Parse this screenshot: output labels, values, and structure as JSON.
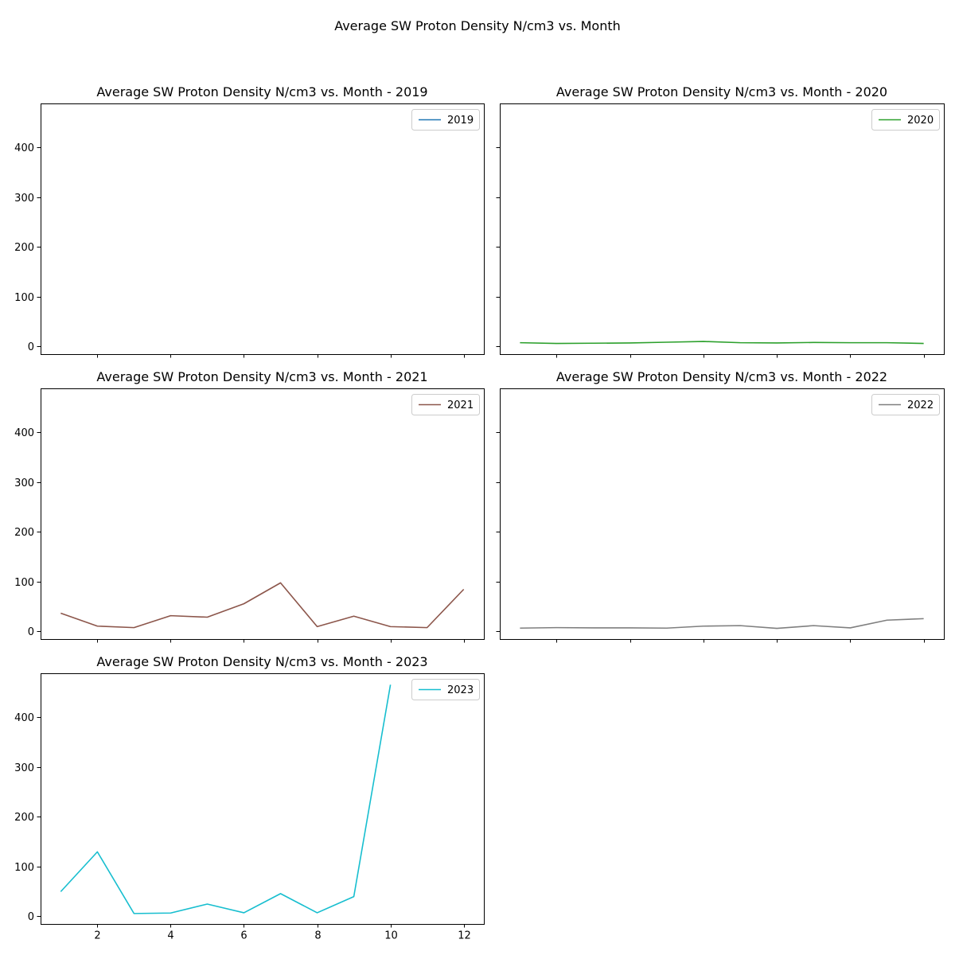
{
  "figure": {
    "suptitle": "Average SW Proton Density N/cm3 vs. Month"
  },
  "chart_data": [
    {
      "type": "line",
      "title": "Average SW Proton Density N/cm3 vs. Month - 2019",
      "xlabel": "",
      "ylabel": "",
      "xlim": [
        0.45,
        12.55
      ],
      "ylim": [
        -16,
        488
      ],
      "xticks": [
        2,
        4,
        6,
        8,
        10,
        12
      ],
      "yticks": [
        0,
        100,
        200,
        300,
        400
      ],
      "show_x_ticklabels": false,
      "show_y_ticklabels": true,
      "legend": "upper-right",
      "grid": false,
      "series": [
        {
          "name": "2019",
          "color": "#1f77b4",
          "x": [],
          "y": []
        }
      ]
    },
    {
      "type": "line",
      "title": "Average SW Proton Density N/cm3 vs. Month - 2020",
      "xlabel": "",
      "ylabel": "",
      "xlim": [
        0.45,
        12.55
      ],
      "ylim": [
        -16,
        488
      ],
      "xticks": [
        2,
        4,
        6,
        8,
        10,
        12
      ],
      "yticks": [
        0,
        100,
        200,
        300,
        400
      ],
      "show_x_ticklabels": false,
      "show_y_ticklabels": false,
      "legend": "upper-right",
      "grid": false,
      "series": [
        {
          "name": "2020",
          "color": "#2ca02c",
          "x": [
            1,
            2,
            3,
            4,
            5,
            6,
            7,
            8,
            9,
            10,
            11,
            12
          ],
          "y": [
            7,
            5.5,
            6,
            6.5,
            8,
            9.5,
            7,
            6.5,
            7.5,
            7,
            7,
            5.5
          ]
        }
      ]
    },
    {
      "type": "line",
      "title": "Average SW Proton Density N/cm3 vs. Month - 2021",
      "xlabel": "",
      "ylabel": "",
      "xlim": [
        0.45,
        12.55
      ],
      "ylim": [
        -16,
        488
      ],
      "xticks": [
        2,
        4,
        6,
        8,
        10,
        12
      ],
      "yticks": [
        0,
        100,
        200,
        300,
        400
      ],
      "show_x_ticklabels": false,
      "show_y_ticklabels": true,
      "legend": "upper-right",
      "grid": false,
      "series": [
        {
          "name": "2021",
          "color": "#8c564b",
          "x": [
            1,
            2,
            3,
            4,
            5,
            6,
            7,
            8,
            9,
            10,
            11,
            12
          ],
          "y": [
            36,
            10,
            7,
            31,
            28,
            55,
            97,
            9,
            30,
            9,
            7,
            84
          ]
        }
      ]
    },
    {
      "type": "line",
      "title": "Average SW Proton Density N/cm3 vs. Month - 2022",
      "xlabel": "",
      "ylabel": "",
      "xlim": [
        0.45,
        12.55
      ],
      "ylim": [
        -16,
        488
      ],
      "xticks": [
        2,
        4,
        6,
        8,
        10,
        12
      ],
      "yticks": [
        0,
        100,
        200,
        300,
        400
      ],
      "show_x_ticklabels": false,
      "show_y_ticklabels": false,
      "legend": "upper-right",
      "grid": false,
      "series": [
        {
          "name": "2022",
          "color": "#7f7f7f",
          "x": [
            1,
            2,
            3,
            4,
            5,
            6,
            7,
            8,
            9,
            10,
            11,
            12
          ],
          "y": [
            6,
            7,
            6.5,
            6.5,
            6,
            10,
            11,
            5.5,
            11,
            6.5,
            22,
            25
          ]
        }
      ]
    },
    {
      "type": "line",
      "title": "Average SW Proton Density N/cm3 vs. Month - 2023",
      "xlabel": "",
      "ylabel": "",
      "xlim": [
        0.45,
        12.55
      ],
      "ylim": [
        -16,
        488
      ],
      "xticks": [
        2,
        4,
        6,
        8,
        10,
        12
      ],
      "yticks": [
        0,
        100,
        200,
        300,
        400
      ],
      "show_x_ticklabels": true,
      "show_y_ticklabels": true,
      "legend": "upper-right",
      "grid": false,
      "series": [
        {
          "name": "2023",
          "color": "#17becf",
          "x": [
            1,
            2,
            3,
            4,
            5,
            6,
            7,
            8,
            9,
            10
          ],
          "y": [
            49,
            129,
            5,
            6,
            24,
            6.5,
            45,
            6.5,
            39,
            465
          ]
        }
      ]
    }
  ]
}
